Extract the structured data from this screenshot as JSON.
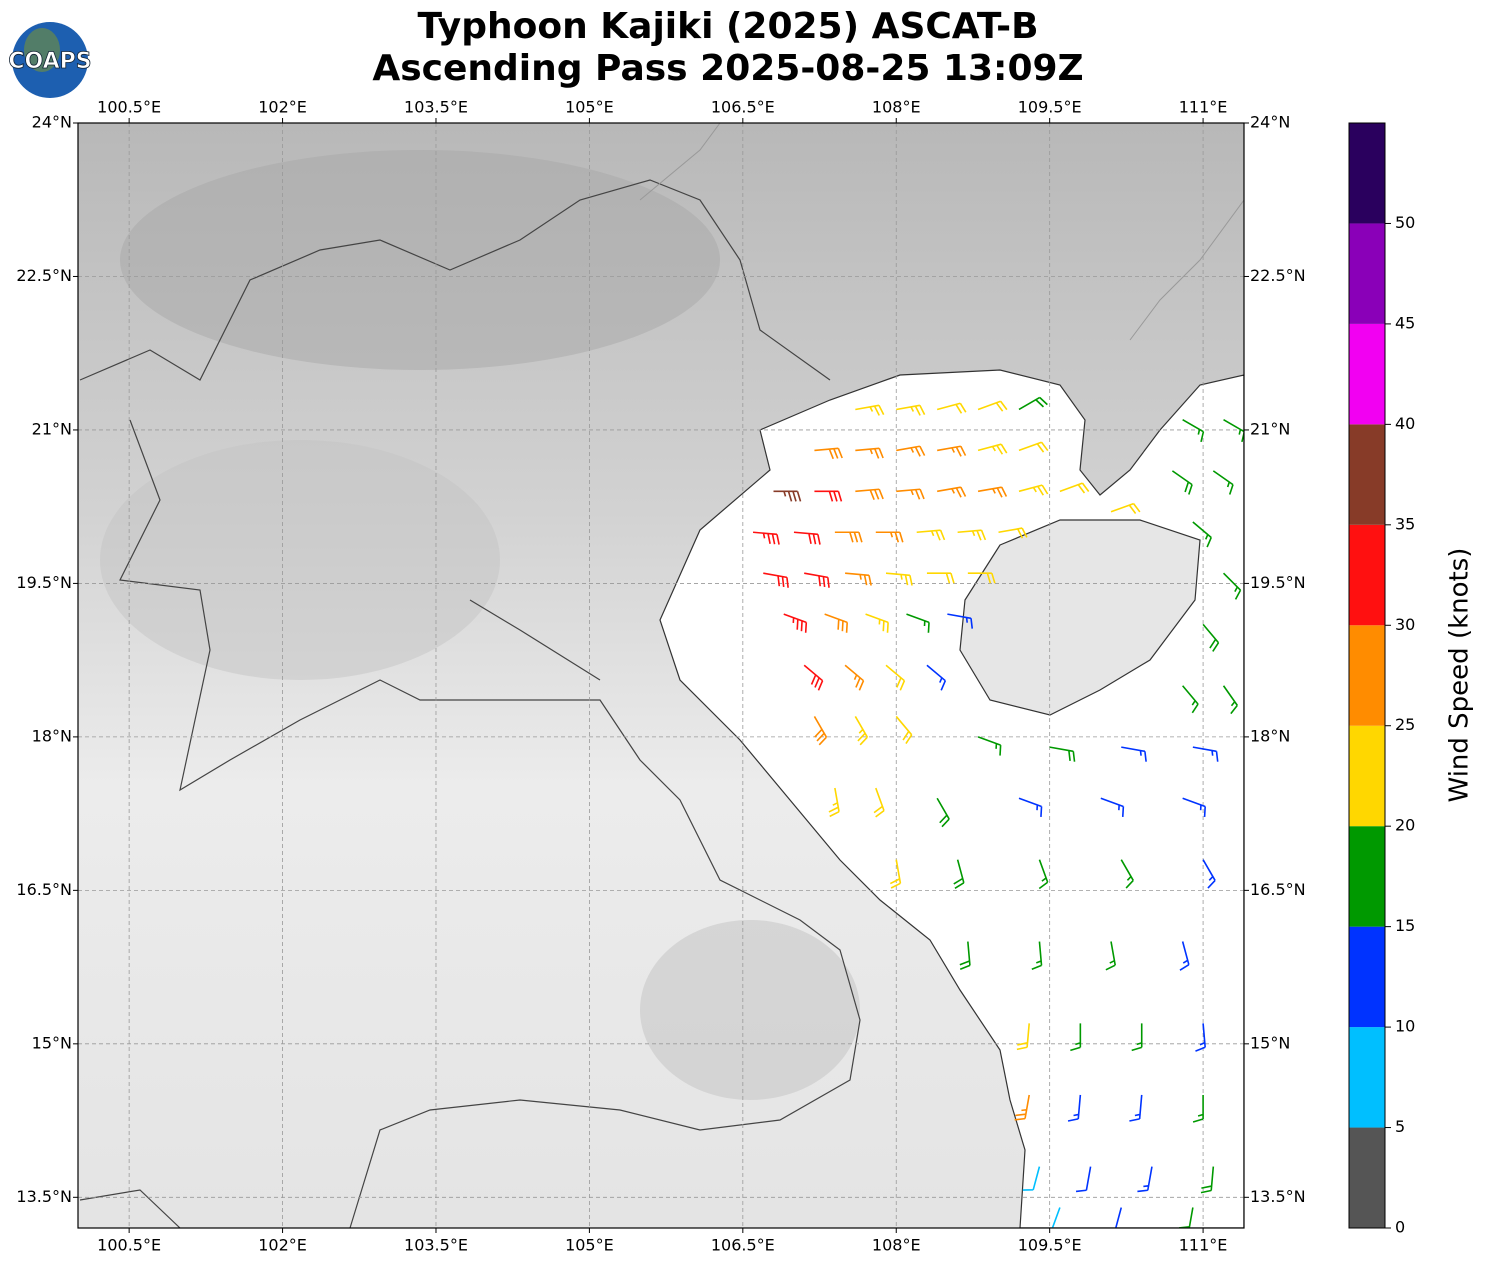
{
  "logo": {
    "text": "COAPS"
  },
  "title": [
    "Typhoon Kajiki (2025) ASCAT-B",
    "Ascending Pass 2025-08-25 13:09Z"
  ],
  "map": {
    "xlim": [
      100,
      111.4
    ],
    "ylim": [
      13.2,
      24
    ],
    "grid": true,
    "xticks": [
      {
        "value": 100.5,
        "label": "100.5°E"
      },
      {
        "value": 102,
        "label": "102°E"
      },
      {
        "value": 103.5,
        "label": "103.5°E"
      },
      {
        "value": 105,
        "label": "105°E"
      },
      {
        "value": 106.5,
        "label": "106.5°E"
      },
      {
        "value": 108,
        "label": "108°E"
      },
      {
        "value": 109.5,
        "label": "109.5°E"
      },
      {
        "value": 111,
        "label": "111°E"
      }
    ],
    "yticks": [
      {
        "value": 24,
        "label": "24°N"
      },
      {
        "value": 22.5,
        "label": "22.5°N"
      },
      {
        "value": 21,
        "label": "21°N"
      },
      {
        "value": 19.5,
        "label": "19.5°N"
      },
      {
        "value": 18,
        "label": "18°N"
      },
      {
        "value": 16.5,
        "label": "16.5°N"
      },
      {
        "value": 15,
        "label": "15°N"
      },
      {
        "value": 13.5,
        "label": "13.5°N"
      }
    ],
    "barbs": [
      [
        107.6,
        21.2,
        24,
        80
      ],
      [
        108.0,
        21.2,
        23,
        80
      ],
      [
        108.4,
        21.2,
        22,
        75
      ],
      [
        108.8,
        21.2,
        21,
        70
      ],
      [
        109.2,
        21.2,
        18,
        60
      ],
      [
        107.2,
        20.8,
        28,
        85
      ],
      [
        107.6,
        20.8,
        27,
        85
      ],
      [
        108.0,
        20.8,
        26,
        80
      ],
      [
        108.4,
        20.8,
        25,
        80
      ],
      [
        108.8,
        20.8,
        24,
        75
      ],
      [
        109.2,
        20.8,
        22,
        70
      ],
      [
        106.8,
        20.4,
        36,
        90
      ],
      [
        107.2,
        20.4,
        31,
        90
      ],
      [
        107.6,
        20.4,
        28,
        85
      ],
      [
        108.0,
        20.4,
        27,
        85
      ],
      [
        108.4,
        20.4,
        26,
        80
      ],
      [
        108.8,
        20.4,
        25,
        80
      ],
      [
        109.2,
        20.4,
        24,
        75
      ],
      [
        109.6,
        20.4,
        22,
        70
      ],
      [
        110.1,
        20.2,
        22,
        70
      ],
      [
        106.6,
        20.0,
        33,
        95
      ],
      [
        107.0,
        20.0,
        32,
        95
      ],
      [
        107.4,
        20.0,
        28,
        90
      ],
      [
        107.8,
        20.0,
        26,
        90
      ],
      [
        108.2,
        20.0,
        24,
        85
      ],
      [
        108.6,
        20.0,
        23,
        85
      ],
      [
        109.0,
        20.0,
        22,
        80
      ],
      [
        106.7,
        19.6,
        32,
        100
      ],
      [
        107.1,
        19.6,
        30,
        100
      ],
      [
        107.5,
        19.6,
        26,
        95
      ],
      [
        107.9,
        19.6,
        23,
        95
      ],
      [
        108.3,
        19.6,
        22,
        90
      ],
      [
        108.7,
        19.6,
        21,
        90
      ],
      [
        106.9,
        19.2,
        33,
        110
      ],
      [
        107.3,
        19.2,
        28,
        110
      ],
      [
        107.7,
        19.2,
        23,
        110
      ],
      [
        108.1,
        19.2,
        15,
        110
      ],
      [
        108.5,
        19.2,
        13,
        100
      ],
      [
        107.1,
        18.7,
        31,
        130
      ],
      [
        107.5,
        18.7,
        27,
        130
      ],
      [
        107.9,
        18.7,
        22,
        130
      ],
      [
        108.3,
        18.7,
        13,
        130
      ],
      [
        107.2,
        18.2,
        28,
        150
      ],
      [
        107.6,
        18.2,
        23,
        150
      ],
      [
        108.0,
        18.2,
        20,
        140
      ],
      [
        108.8,
        18.0,
        17,
        110
      ],
      [
        109.5,
        17.9,
        18,
        100
      ],
      [
        110.2,
        17.9,
        14,
        100
      ],
      [
        110.9,
        17.9,
        13,
        100
      ],
      [
        107.4,
        17.5,
        24,
        170
      ],
      [
        107.8,
        17.5,
        20,
        160
      ],
      [
        108.4,
        17.4,
        18,
        150
      ],
      [
        109.2,
        17.4,
        13,
        110
      ],
      [
        110.0,
        17.4,
        13,
        110
      ],
      [
        110.8,
        17.4,
        14,
        110
      ],
      [
        108.0,
        16.8,
        20,
        170
      ],
      [
        108.6,
        16.8,
        18,
        165
      ],
      [
        109.4,
        16.8,
        16,
        160
      ],
      [
        110.2,
        16.8,
        15,
        150
      ],
      [
        111.0,
        16.8,
        14,
        150
      ],
      [
        108.7,
        16.0,
        18,
        175
      ],
      [
        109.4,
        16.0,
        17,
        175
      ],
      [
        110.1,
        16.0,
        16,
        170
      ],
      [
        110.8,
        16.0,
        14,
        165
      ],
      [
        109.3,
        15.2,
        22,
        185
      ],
      [
        109.8,
        15.2,
        16,
        180
      ],
      [
        110.4,
        15.2,
        15,
        180
      ],
      [
        111.0,
        15.2,
        13,
        175
      ],
      [
        109.3,
        14.5,
        25,
        190
      ],
      [
        109.8,
        14.5,
        14,
        185
      ],
      [
        110.4,
        14.5,
        13,
        185
      ],
      [
        111.0,
        14.5,
        17,
        180
      ],
      [
        109.4,
        13.8,
        8,
        195
      ],
      [
        109.9,
        13.8,
        11,
        190
      ],
      [
        110.5,
        13.8,
        13,
        190
      ],
      [
        111.1,
        13.8,
        18,
        185
      ],
      [
        109.6,
        13.4,
        7,
        200
      ],
      [
        110.2,
        13.4,
        12,
        195
      ],
      [
        110.9,
        13.4,
        19,
        190
      ],
      [
        110.8,
        21.1,
        17,
        120
      ],
      [
        111.2,
        21.1,
        16,
        120
      ],
      [
        110.7,
        20.6,
        18,
        125
      ],
      [
        111.1,
        20.6,
        17,
        125
      ],
      [
        110.9,
        20.1,
        16,
        130
      ],
      [
        111.2,
        19.6,
        17,
        135
      ],
      [
        111.0,
        19.1,
        18,
        140
      ],
      [
        110.8,
        18.5,
        17,
        140
      ],
      [
        111.2,
        18.5,
        17,
        145
      ]
    ]
  },
  "colorbar": {
    "label": "Wind Speed (knots)",
    "clim": [
      0,
      55
    ],
    "ticks": [
      0,
      5,
      10,
      15,
      20,
      25,
      30,
      35,
      40,
      45,
      50
    ],
    "colors": [
      "#555555",
      "#00bfff",
      "#0033ff",
      "#009900",
      "#ffd700",
      "#ff8c00",
      "#ff1010",
      "#873b28",
      "#f200f2",
      "#8a00b8",
      "#2a005e"
    ]
  }
}
